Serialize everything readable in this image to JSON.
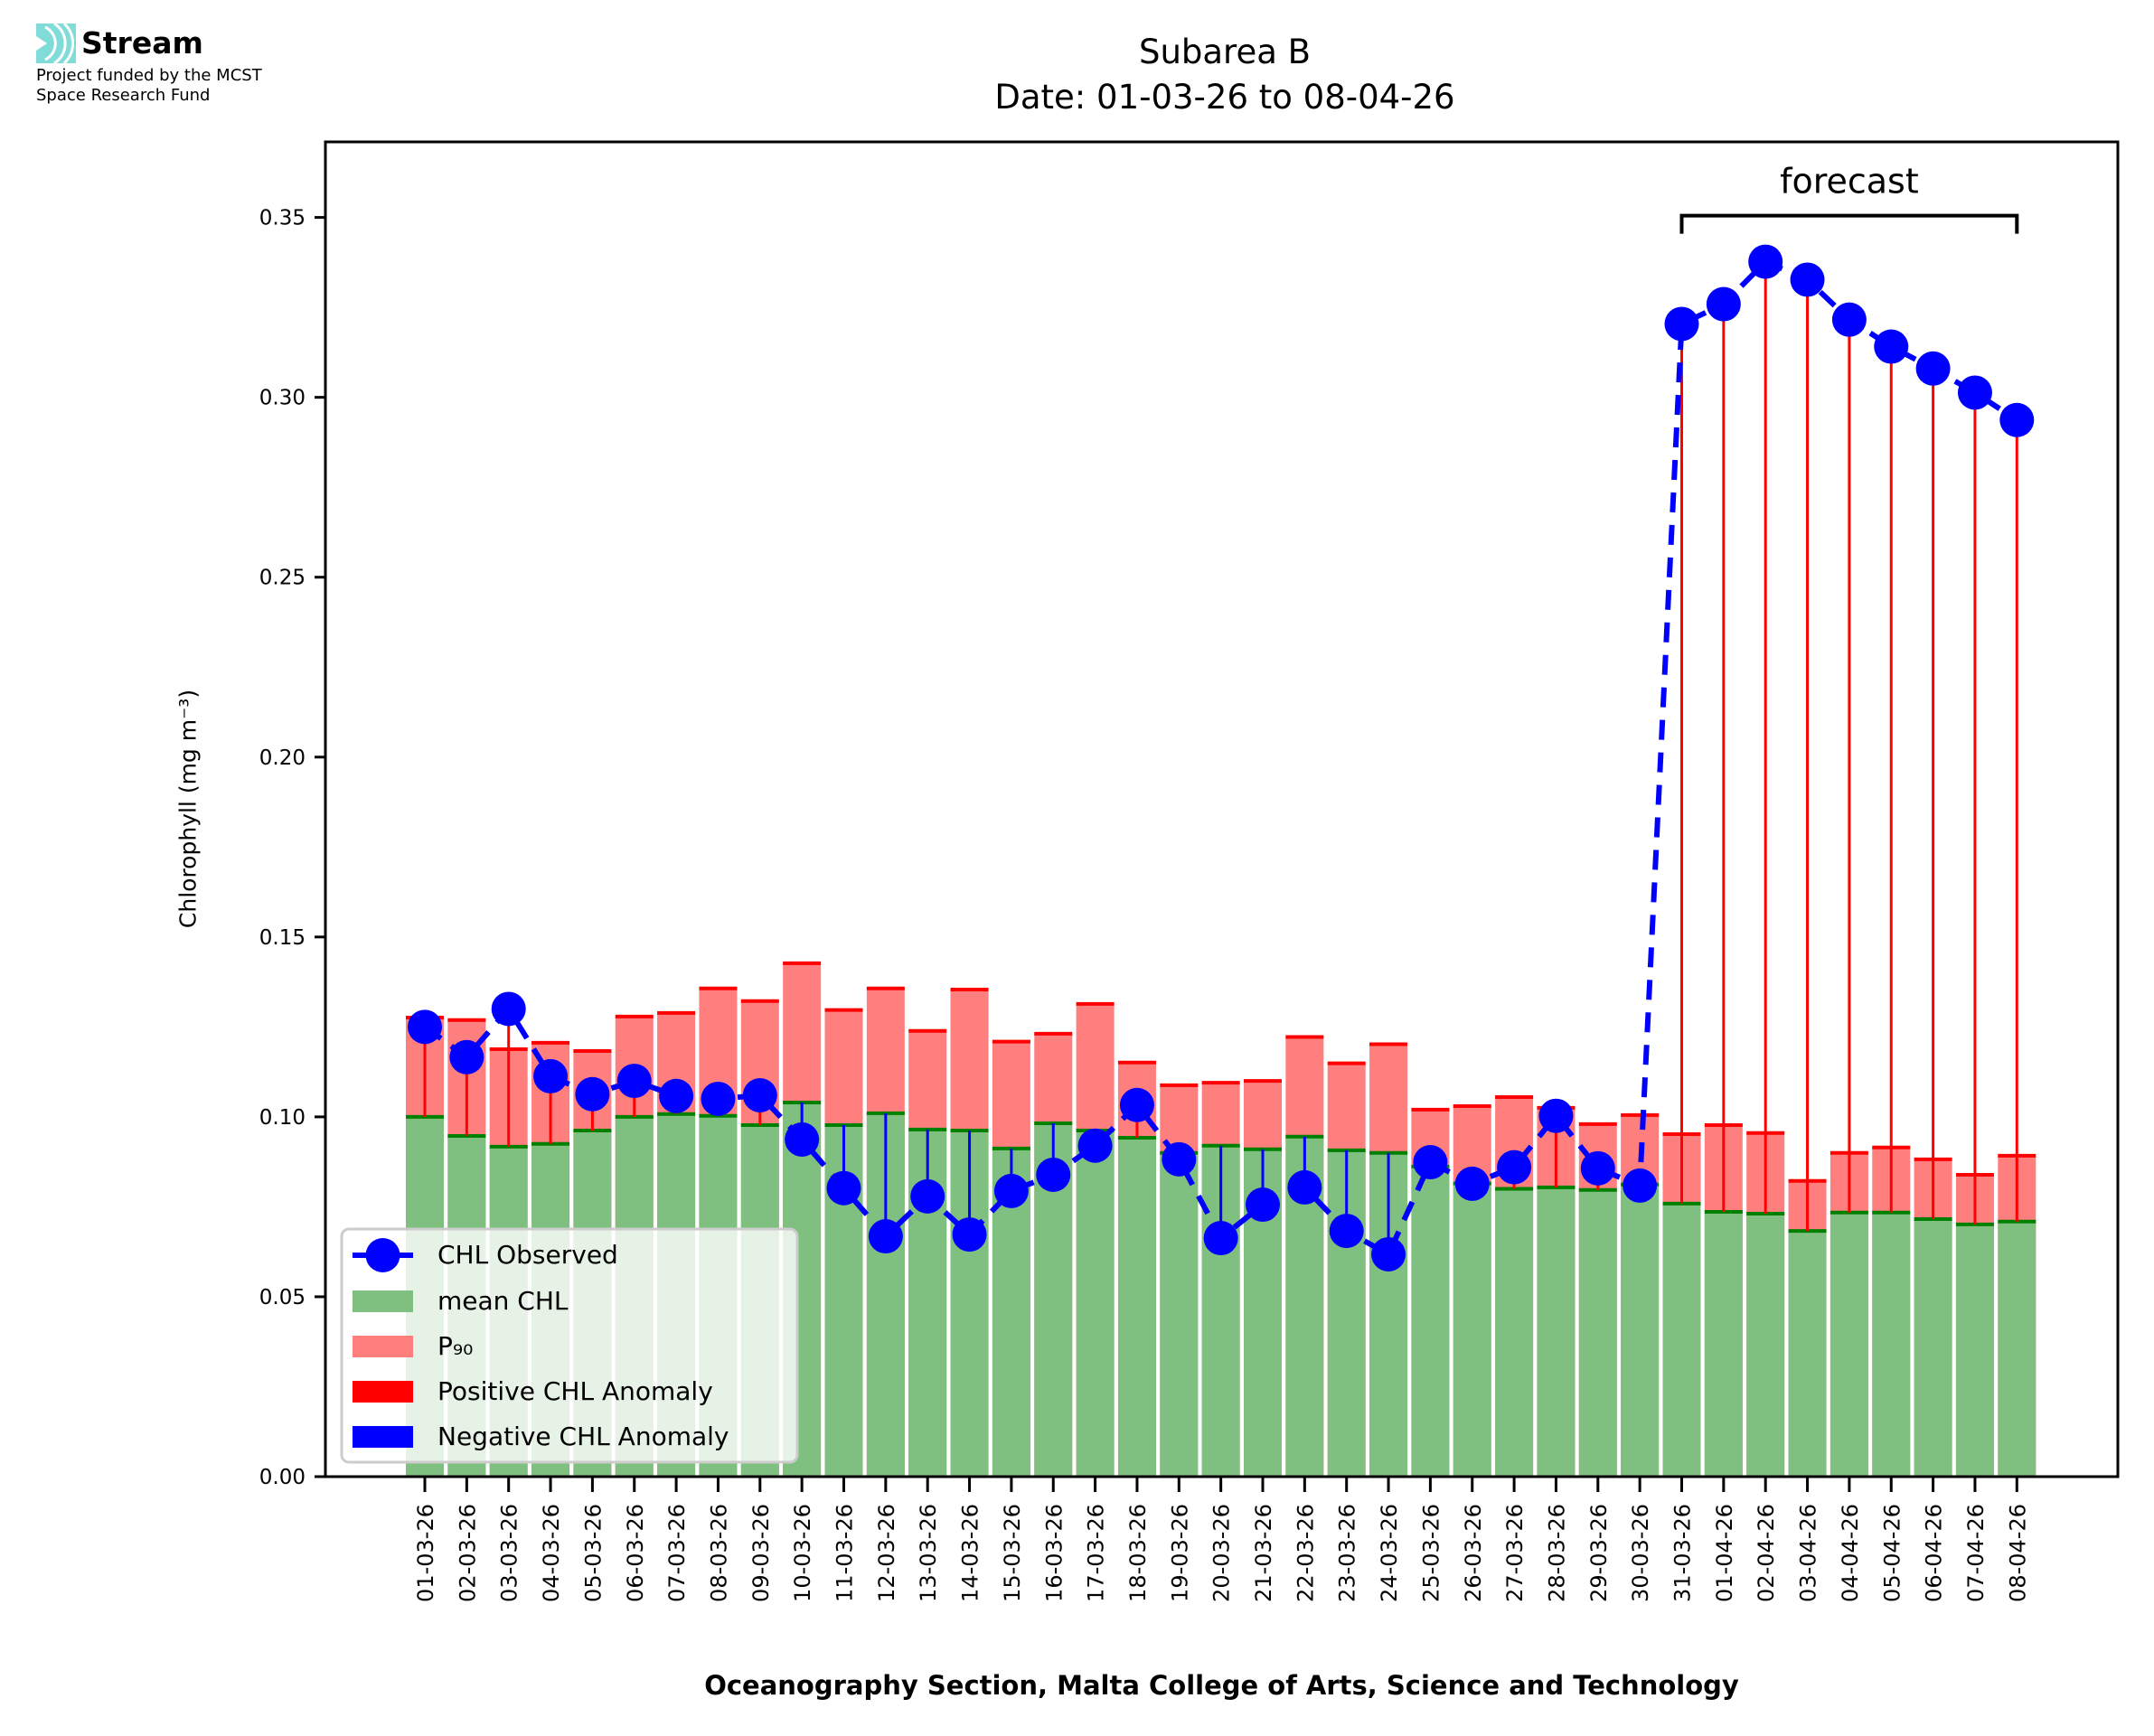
{
  "logo": {
    "name": "Stream",
    "subtitle_line1": "Project funded by the MCST",
    "subtitle_line2": "Space Research Fund",
    "icon": "stream-waves-icon",
    "color": "#7fdcd8"
  },
  "chart_data": {
    "type": "bar",
    "title": "Subarea B",
    "subtitle": "Date: 01-03-26 to 08-04-26",
    "xlabel": "Oceanography Section, Malta College of Arts, Science and Technology",
    "ylabel": "Chlorophyll (mg m⁻³)",
    "ylim": [
      0,
      0.371
    ],
    "yticks": [
      "0.00",
      "0.05",
      "0.10",
      "0.15",
      "0.20",
      "0.25",
      "0.30",
      "0.35"
    ],
    "ytick_values": [
      0.0,
      0.05,
      0.1,
      0.15,
      0.2,
      0.25,
      0.3,
      0.35
    ],
    "grid": false,
    "legend_position": "lower-left",
    "categories": [
      "01-03-26",
      "02-03-26",
      "03-03-26",
      "04-03-26",
      "05-03-26",
      "06-03-26",
      "07-03-26",
      "08-03-26",
      "09-03-26",
      "10-03-26",
      "11-03-26",
      "12-03-26",
      "13-03-26",
      "14-03-26",
      "15-03-26",
      "16-03-26",
      "17-03-26",
      "18-03-26",
      "19-03-26",
      "20-03-26",
      "21-03-26",
      "22-03-26",
      "23-03-26",
      "24-03-26",
      "25-03-26",
      "26-03-26",
      "27-03-26",
      "28-03-26",
      "29-03-26",
      "30-03-26",
      "31-03-26",
      "01-04-26",
      "02-04-26",
      "03-04-26",
      "04-04-26",
      "05-04-26",
      "06-04-26",
      "07-04-26",
      "08-04-26"
    ],
    "series": [
      {
        "name": "mean CHL",
        "kind": "bar",
        "color": "#7fbf7f",
        "edge_color": "#008000",
        "values": [
          0.1,
          0.0947,
          0.0917,
          0.0925,
          0.0962,
          0.1,
          0.1008,
          0.1003,
          0.0977,
          0.104,
          0.0977,
          0.101,
          0.0965,
          0.0962,
          0.0912,
          0.0982,
          0.0962,
          0.0942,
          0.09,
          0.092,
          0.091,
          0.0945,
          0.0907,
          0.09,
          0.0862,
          0.0815,
          0.08,
          0.0804,
          0.0797,
          0.0812,
          0.0759,
          0.0736,
          0.0731,
          0.0683,
          0.0734,
          0.0734,
          0.0716,
          0.0701,
          0.0709
        ]
      },
      {
        "name": "P₉₀",
        "kind": "bar",
        "color": "#ff7f7f",
        "edge_color": "#ff0000",
        "values": [
          0.1276,
          0.1269,
          0.1188,
          0.1206,
          0.1183,
          0.1279,
          0.1289,
          0.1357,
          0.1322,
          0.1427,
          0.1297,
          0.1357,
          0.1239,
          0.1354,
          0.1209,
          0.1231,
          0.1314,
          0.1151,
          0.1088,
          0.1095,
          0.11,
          0.1222,
          0.1149,
          0.1202,
          0.102,
          0.103,
          0.1055,
          0.1025,
          0.098,
          0.1005,
          0.0952,
          0.0977,
          0.0955,
          0.0822,
          0.09,
          0.0915,
          0.0882,
          0.0839,
          0.0892
        ]
      },
      {
        "name": "CHL Observed",
        "kind": "line",
        "color": "#0000ff",
        "marker": "circle",
        "values": [
          0.125,
          0.1166,
          0.13,
          0.1113,
          0.1063,
          0.11,
          0.1058,
          0.105,
          0.106,
          0.0937,
          0.0802,
          0.0668,
          0.0779,
          0.0673,
          0.0794,
          0.0839,
          0.092,
          0.1033,
          0.0882,
          0.0663,
          0.0756,
          0.0804,
          0.0683,
          0.0618,
          0.0874,
          0.0814,
          0.086,
          0.1003,
          0.0857,
          0.0809,
          0.3204,
          0.3259,
          0.3377,
          0.3327,
          0.3216,
          0.3141,
          0.308,
          0.3013,
          0.2937
        ]
      }
    ],
    "anomaly_legend": [
      {
        "name": "Positive CHL Anomaly",
        "color": "#ff0000",
        "rule": "observed > P90: stem from P90 top to observed; mean < observed < P90: stem from mean to observed"
      },
      {
        "name": "Negative CHL Anomaly",
        "color": "#0000ff",
        "rule": "observed < mean: stem from mean down to observed"
      }
    ],
    "legend": [
      "CHL Observed",
      "mean CHL",
      "P₉₀",
      "Positive CHL Anomaly",
      "Negative CHL Anomaly"
    ],
    "annotation": {
      "text": "forecast",
      "from_category": "31-03-26",
      "to_category": "08-04-26",
      "level": 0.3505
    },
    "forecast_start_index": 30
  }
}
